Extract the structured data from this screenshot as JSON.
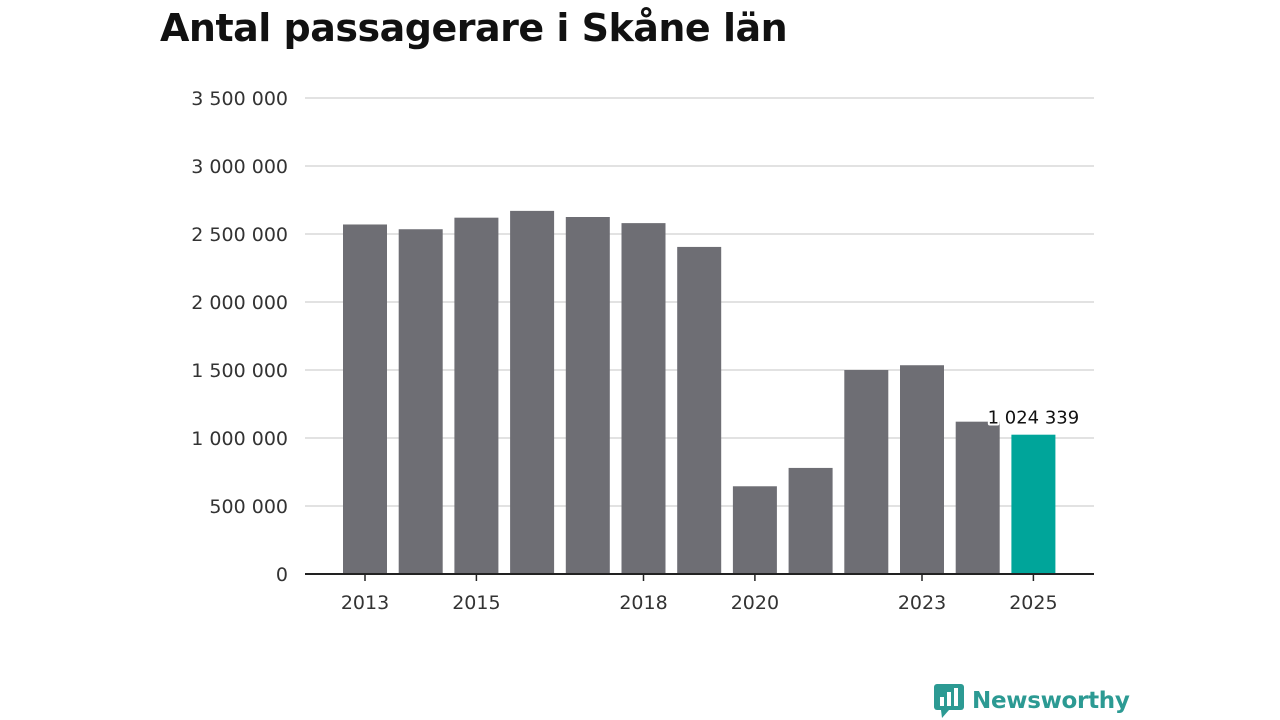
{
  "colors": {
    "bar": "#6e6e74",
    "highlight": "#00a59a",
    "grid": "#d9d9d9",
    "axis": "#222222",
    "brand": "#2c9a93"
  },
  "brand": {
    "name": "Newsworthy",
    "icon": "bar-chart-speech-bubble-icon"
  },
  "chart_data": {
    "type": "bar",
    "title": "Antal passagerare i Skåne län",
    "xlabel": "",
    "ylabel": "",
    "ylim": [
      0,
      3500000
    ],
    "yticks": [
      0,
      500000,
      1000000,
      1500000,
      2000000,
      2500000,
      3000000,
      3500000
    ],
    "ytick_labels": [
      "0",
      "500 000",
      "1 000 000",
      "1 500 000",
      "2 000 000",
      "2 500 000",
      "3 000 000",
      "3 500 000"
    ],
    "categories": [
      "2013",
      "2014",
      "2015",
      "2016",
      "2017",
      "2018",
      "2019",
      "2020",
      "2021",
      "2022",
      "2023",
      "2024",
      "2025"
    ],
    "xtick_labels": [
      "2013",
      "",
      "2015",
      "",
      "",
      "2018",
      "",
      "2020",
      "",
      "",
      "2023",
      "",
      "2025"
    ],
    "values": [
      2570000,
      2535000,
      2620000,
      2670000,
      2625000,
      2580000,
      2405000,
      645000,
      780000,
      1500000,
      1535000,
      1120000,
      1024339
    ],
    "highlight_index": 12,
    "annotations": [
      {
        "index": 12,
        "text": "1 024 339"
      }
    ],
    "grid": true,
    "legend": "none"
  }
}
